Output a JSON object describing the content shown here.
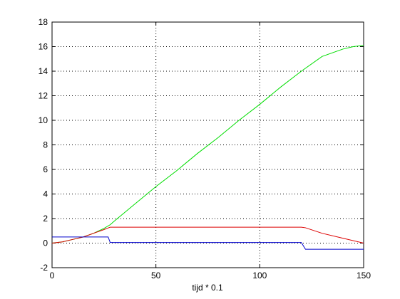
{
  "chart_data": {
    "type": "line",
    "title": "",
    "xlabel": "tijd * 0.1",
    "ylabel": "",
    "xlim": [
      0,
      150
    ],
    "ylim": [
      -2,
      18
    ],
    "x_ticks": [
      0,
      50,
      100,
      150
    ],
    "y_ticks": [
      -2,
      0,
      2,
      4,
      6,
      8,
      10,
      12,
      14,
      16,
      18
    ],
    "grid": true,
    "legend": "none",
    "series": [
      {
        "color": "#00dd00",
        "points": [
          [
            0,
            0
          ],
          [
            5,
            0.1
          ],
          [
            10,
            0.3
          ],
          [
            15,
            0.5
          ],
          [
            20,
            0.8
          ],
          [
            25,
            1.2
          ],
          [
            28,
            1.5
          ],
          [
            30,
            1.8
          ],
          [
            40,
            3.2
          ],
          [
            50,
            4.6
          ],
          [
            60,
            5.9
          ],
          [
            70,
            7.3
          ],
          [
            80,
            8.6
          ],
          [
            90,
            10.0
          ],
          [
            100,
            11.3
          ],
          [
            110,
            12.7
          ],
          [
            120,
            14.0
          ],
          [
            130,
            15.2
          ],
          [
            140,
            15.8
          ],
          [
            145,
            16.0
          ],
          [
            150,
            16.1
          ]
        ]
      },
      {
        "color": "#dd0000",
        "points": [
          [
            0,
            0
          ],
          [
            5,
            0.1
          ],
          [
            10,
            0.3
          ],
          [
            15,
            0.5
          ],
          [
            20,
            0.8
          ],
          [
            25,
            1.1
          ],
          [
            28,
            1.3
          ],
          [
            120,
            1.3
          ],
          [
            122,
            1.25
          ],
          [
            130,
            0.8
          ],
          [
            140,
            0.4
          ],
          [
            150,
            0
          ]
        ]
      },
      {
        "color": "#0000cc",
        "points": [
          [
            0,
            0.5
          ],
          [
            27,
            0.5
          ],
          [
            28,
            0.05
          ],
          [
            120,
            0.05
          ],
          [
            122,
            -0.5
          ],
          [
            150,
            -0.5
          ]
        ]
      }
    ]
  }
}
